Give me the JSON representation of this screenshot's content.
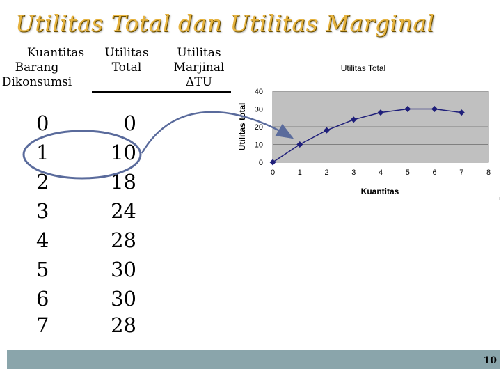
{
  "title": "Utilitas Total dan Utilitas Marginal",
  "headers": {
    "qty": [
      "Kuantitas",
      "Barang",
      "Dikonsumsi"
    ],
    "total": [
      "Utilitas",
      "Total"
    ],
    "marginal": [
      "Utilitas",
      "Marjinal",
      "ΔTU"
    ]
  },
  "table": {
    "quantity": [
      "0",
      "1",
      "2",
      "3",
      "4",
      "5",
      "6",
      "7"
    ],
    "total_utility": [
      "0",
      "10",
      "18",
      "24",
      "28",
      "30",
      "30",
      "28"
    ]
  },
  "page_number": "10",
  "colors": {
    "title": "#e6b33f",
    "series": "#1f1f7a",
    "band": "#8aa5ab",
    "grid": "#808080",
    "highlight": "#5a6b9c"
  },
  "chart_data": {
    "type": "line",
    "title": "Utilitas Total",
    "xlabel": "Kuantitas",
    "ylabel": "Utilitas total",
    "x": [
      0,
      1,
      2,
      3,
      4,
      5,
      6,
      7
    ],
    "series": [
      {
        "values": [
          0,
          10,
          18,
          24,
          28,
          30,
          30,
          28
        ]
      }
    ],
    "xlim": [
      0,
      8
    ],
    "ylim": [
      0,
      40
    ],
    "xticks": [
      "0",
      "1",
      "2",
      "3",
      "4",
      "5",
      "6",
      "7",
      "8"
    ],
    "yticks": [
      "0",
      "10",
      "20",
      "30",
      "40"
    ],
    "grid": true,
    "legend": "none",
    "marker": "diamond"
  }
}
